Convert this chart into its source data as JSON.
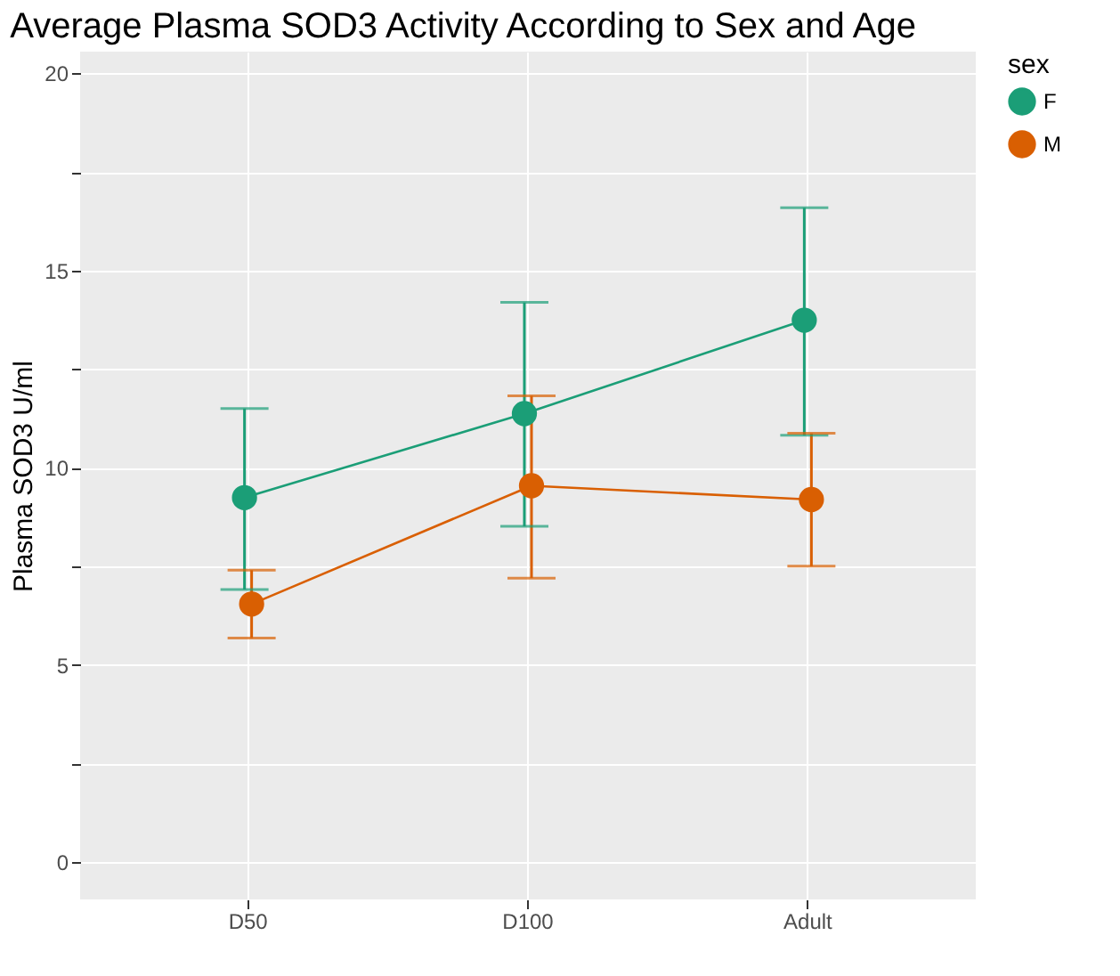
{
  "chart_data": {
    "type": "line",
    "title": "Average Plasma SOD3 Activity According to Sex and Age",
    "ylabel": "Plasma SOD3 U/ml",
    "legend_title": "sex",
    "categories": [
      "D50",
      "D100",
      "Adult"
    ],
    "series": [
      {
        "name": "F",
        "color": "#1b9e77",
        "values": [
          9.24,
          11.37,
          13.74
        ],
        "errors": [
          [
            6.91,
            11.5
          ],
          [
            8.51,
            14.19
          ],
          [
            10.82,
            16.59
          ]
        ]
      },
      {
        "name": "M",
        "color": "#d95f02",
        "values": [
          6.54,
          9.54,
          9.19
        ],
        "errors": [
          [
            5.68,
            7.4
          ],
          [
            7.2,
            11.82
          ],
          [
            7.5,
            10.87
          ]
        ]
      }
    ],
    "ylim": [
      -0.95,
      20.55
    ],
    "yticks": [
      0,
      {
        "value": 2.5,
        "label": null
      },
      5,
      {
        "value": 7.5,
        "label": null
      },
      10,
      {
        "value": 12.5,
        "label": null
      },
      15,
      {
        "value": 17.5,
        "label": null
      },
      20
    ],
    "grid": true,
    "legend": "right",
    "marker": "circle",
    "line_style": "solid"
  }
}
